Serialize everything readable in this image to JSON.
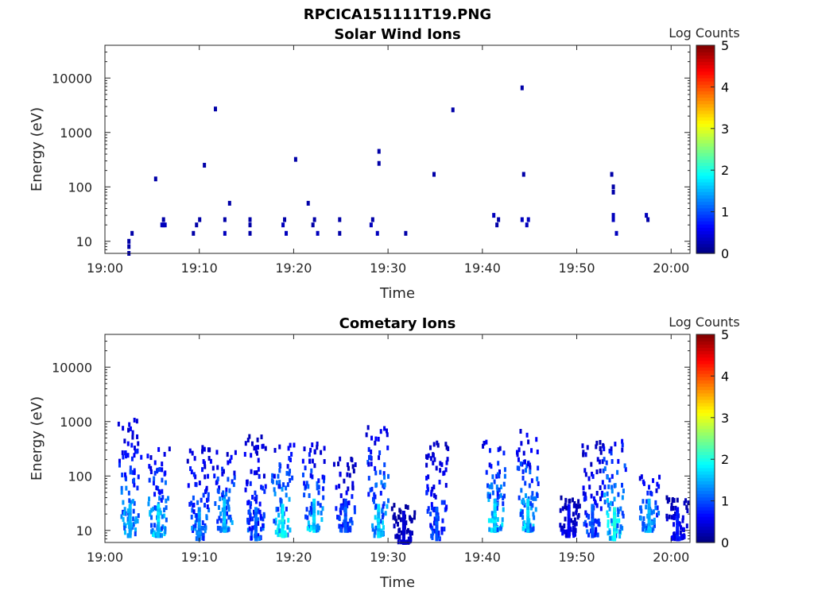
{
  "figure_title": "RPCICA151111T19.PNG",
  "chart_data": [
    {
      "type": "heatmap",
      "title": "Solar Wind Ions",
      "xlabel": "Time",
      "ylabel": "Energy (eV)",
      "x_ticks": [
        "19:00",
        "19:10",
        "19:20",
        "19:30",
        "19:40",
        "19:50",
        "20:00"
      ],
      "x_range": [
        "19:00",
        "20:02"
      ],
      "y_ticks": [
        "10",
        "100",
        "1000",
        "10000"
      ],
      "y_scale": "log",
      "y_range": [
        6,
        40000
      ],
      "colorbar": {
        "label": "Log Counts",
        "ticks": [
          "0",
          "1",
          "2",
          "3",
          "4",
          "5"
        ],
        "range": [
          0,
          5
        ],
        "colormap": "jet"
      },
      "points": [
        {
          "t": "19:02:30",
          "e": 6,
          "v": 0.2
        },
        {
          "t": "19:02:30",
          "e": 8,
          "v": 0.2
        },
        {
          "t": "19:02:30",
          "e": 10,
          "v": 0.2
        },
        {
          "t": "19:02:50",
          "e": 14,
          "v": 0.2
        },
        {
          "t": "19:05:20",
          "e": 140,
          "v": 0.2
        },
        {
          "t": "19:06:00",
          "e": 20,
          "v": 0.3
        },
        {
          "t": "19:06:10",
          "e": 20,
          "v": 0.3
        },
        {
          "t": "19:06:20",
          "e": 20,
          "v": 0.3
        },
        {
          "t": "19:06:10",
          "e": 25,
          "v": 0.2
        },
        {
          "t": "19:09:20",
          "e": 14,
          "v": 0.2
        },
        {
          "t": "19:09:40",
          "e": 20,
          "v": 0.2
        },
        {
          "t": "19:10:00",
          "e": 25,
          "v": 0.2
        },
        {
          "t": "19:10:30",
          "e": 250,
          "v": 0.2
        },
        {
          "t": "19:11:40",
          "e": 2700,
          "v": 0.2
        },
        {
          "t": "19:12:40",
          "e": 14,
          "v": 0.3
        },
        {
          "t": "19:12:40",
          "e": 25,
          "v": 0.2
        },
        {
          "t": "19:13:10",
          "e": 50,
          "v": 0.2
        },
        {
          "t": "19:15:20",
          "e": 14,
          "v": 0.2
        },
        {
          "t": "19:15:20",
          "e": 20,
          "v": 0.2
        },
        {
          "t": "19:15:20",
          "e": 25,
          "v": 0.2
        },
        {
          "t": "19:18:50",
          "e": 20,
          "v": 0.3
        },
        {
          "t": "19:19:00",
          "e": 25,
          "v": 0.2
        },
        {
          "t": "19:19:10",
          "e": 14,
          "v": 0.3
        },
        {
          "t": "19:20:10",
          "e": 320,
          "v": 0.2
        },
        {
          "t": "19:21:30",
          "e": 50,
          "v": 0.2
        },
        {
          "t": "19:22:00",
          "e": 20,
          "v": 0.2
        },
        {
          "t": "19:22:10",
          "e": 25,
          "v": 0.2
        },
        {
          "t": "19:22:30",
          "e": 14,
          "v": 0.3
        },
        {
          "t": "19:24:50",
          "e": 14,
          "v": 0.2
        },
        {
          "t": "19:24:50",
          "e": 25,
          "v": 0.2
        },
        {
          "t": "19:28:10",
          "e": 20,
          "v": 0.3
        },
        {
          "t": "19:28:20",
          "e": 25,
          "v": 0.2
        },
        {
          "t": "19:28:50",
          "e": 14,
          "v": 0.3
        },
        {
          "t": "19:29:00",
          "e": 270,
          "v": 0.2
        },
        {
          "t": "19:29:00",
          "e": 450,
          "v": 0.2
        },
        {
          "t": "19:31:50",
          "e": 14,
          "v": 0.2
        },
        {
          "t": "19:34:50",
          "e": 170,
          "v": 0.2
        },
        {
          "t": "19:36:50",
          "e": 2600,
          "v": 0.2
        },
        {
          "t": "19:41:10",
          "e": 30,
          "v": 0.3
        },
        {
          "t": "19:41:30",
          "e": 20,
          "v": 0.2
        },
        {
          "t": "19:41:40",
          "e": 25,
          "v": 0.2
        },
        {
          "t": "19:44:10",
          "e": 6600,
          "v": 0.2
        },
        {
          "t": "19:44:20",
          "e": 170,
          "v": 0.2
        },
        {
          "t": "19:44:10",
          "e": 25,
          "v": 0.3
        },
        {
          "t": "19:44:40",
          "e": 20,
          "v": 0.3
        },
        {
          "t": "19:44:50",
          "e": 25,
          "v": 0.3
        },
        {
          "t": "19:53:40",
          "e": 170,
          "v": 0.2
        },
        {
          "t": "19:53:50",
          "e": 100,
          "v": 0.2
        },
        {
          "t": "19:53:50",
          "e": 80,
          "v": 0.2
        },
        {
          "t": "19:53:50",
          "e": 25,
          "v": 0.3
        },
        {
          "t": "19:53:50",
          "e": 30,
          "v": 0.3
        },
        {
          "t": "19:54:10",
          "e": 14,
          "v": 0.3
        },
        {
          "t": "19:57:20",
          "e": 30,
          "v": 0.3
        },
        {
          "t": "19:57:30",
          "e": 25,
          "v": 0.2
        }
      ]
    },
    {
      "type": "heatmap",
      "title": "Cometary Ions",
      "xlabel": "Time",
      "ylabel": "Energy (eV)",
      "x_ticks": [
        "19:00",
        "19:10",
        "19:20",
        "19:30",
        "19:40",
        "19:50",
        "20:00"
      ],
      "x_range": [
        "19:00",
        "20:02"
      ],
      "y_ticks": [
        "10",
        "100",
        "1000",
        "10000"
      ],
      "y_scale": "log",
      "y_range": [
        6,
        40000
      ],
      "colorbar": {
        "label": "Log Counts",
        "ticks": [
          "0",
          "1",
          "2",
          "3",
          "4",
          "5"
        ],
        "range": [
          0,
          5
        ],
        "colormap": "jet"
      },
      "bursts": [
        {
          "t": "19:02:40",
          "e_lo": 8,
          "e_hi": 1100,
          "v": 1.5
        },
        {
          "t": "19:05:40",
          "e_lo": 8,
          "e_hi": 400,
          "v": 1.6
        },
        {
          "t": "19:10:00",
          "e_lo": 7,
          "e_hi": 380,
          "v": 1.3
        },
        {
          "t": "19:12:40",
          "e_lo": 10,
          "e_hi": 320,
          "v": 1.5
        },
        {
          "t": "19:16:00",
          "e_lo": 7,
          "e_hi": 700,
          "v": 1.1
        },
        {
          "t": "19:18:50",
          "e_lo": 8,
          "e_hi": 380,
          "v": 1.8
        },
        {
          "t": "19:22:10",
          "e_lo": 10,
          "e_hi": 400,
          "v": 1.6
        },
        {
          "t": "19:25:30",
          "e_lo": 10,
          "e_hi": 220,
          "v": 1.0
        },
        {
          "t": "19:29:00",
          "e_lo": 8,
          "e_hi": 780,
          "v": 1.6
        },
        {
          "t": "19:31:40",
          "e_lo": 6,
          "e_hi": 30,
          "v": 0.4
        },
        {
          "t": "19:35:10",
          "e_lo": 7,
          "e_hi": 450,
          "v": 1.0
        },
        {
          "t": "19:41:20",
          "e_lo": 10,
          "e_hi": 420,
          "v": 1.7
        },
        {
          "t": "19:44:50",
          "e_lo": 10,
          "e_hi": 680,
          "v": 1.6
        },
        {
          "t": "19:49:10",
          "e_lo": 8,
          "e_hi": 40,
          "v": 0.6
        },
        {
          "t": "19:51:40",
          "e_lo": 8,
          "e_hi": 420,
          "v": 1.0
        },
        {
          "t": "19:54:00",
          "e_lo": 7,
          "e_hi": 450,
          "v": 1.9
        },
        {
          "t": "19:57:40",
          "e_lo": 10,
          "e_hi": 100,
          "v": 1.5
        },
        {
          "t": "20:00:40",
          "e_lo": 7,
          "e_hi": 40,
          "v": 0.7
        }
      ]
    }
  ]
}
